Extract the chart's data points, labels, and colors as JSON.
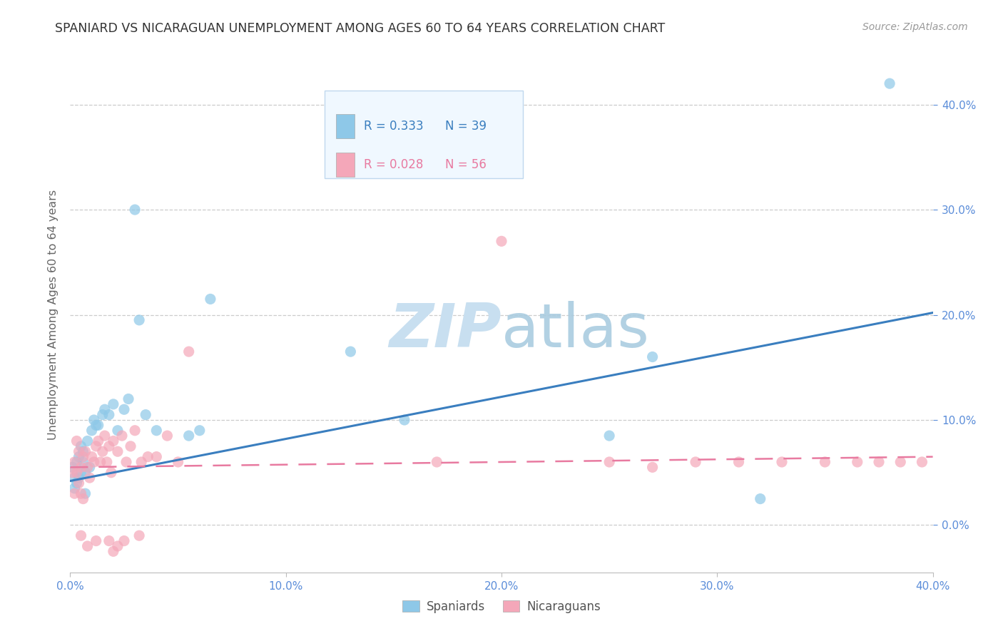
{
  "title": "SPANIARD VS NICARAGUAN UNEMPLOYMENT AMONG AGES 60 TO 64 YEARS CORRELATION CHART",
  "source": "Source: ZipAtlas.com",
  "ylabel": "Unemployment Among Ages 60 to 64 years",
  "xlim": [
    0.0,
    0.4
  ],
  "ylim": [
    -0.045,
    0.445
  ],
  "legend_blue_R": "R = 0.333",
  "legend_blue_N": "N = 39",
  "legend_pink_R": "R = 0.028",
  "legend_pink_N": "N = 56",
  "legend_spaniards": "Spaniards",
  "legend_nicaraguans": "Nicaraguans",
  "blue_color": "#8ec8e8",
  "pink_color": "#f4a7b9",
  "blue_line_color": "#3a7ebf",
  "pink_line_color": "#e87aa0",
  "grid_color": "#cccccc",
  "title_color": "#333333",
  "axis_label_color": "#666666",
  "tick_color": "#5b8dd9",
  "watermark_color": "#c8dff0",
  "blue_trendline_x": [
    0.0,
    0.4
  ],
  "blue_trendline_y": [
    0.042,
    0.202
  ],
  "pink_trendline_x": [
    0.0,
    0.4
  ],
  "pink_trendline_y": [
    0.055,
    0.065
  ],
  "spaniards_x": [
    0.001,
    0.002,
    0.002,
    0.003,
    0.003,
    0.004,
    0.004,
    0.005,
    0.005,
    0.006,
    0.006,
    0.007,
    0.007,
    0.008,
    0.009,
    0.01,
    0.011,
    0.012,
    0.013,
    0.015,
    0.016,
    0.018,
    0.02,
    0.022,
    0.025,
    0.027,
    0.03,
    0.032,
    0.035,
    0.04,
    0.055,
    0.06,
    0.065,
    0.13,
    0.155,
    0.25,
    0.27,
    0.32,
    0.38
  ],
  "spaniards_y": [
    0.055,
    0.045,
    0.035,
    0.06,
    0.04,
    0.065,
    0.045,
    0.075,
    0.05,
    0.06,
    0.07,
    0.05,
    0.03,
    0.08,
    0.055,
    0.09,
    0.1,
    0.095,
    0.095,
    0.105,
    0.11,
    0.105,
    0.115,
    0.09,
    0.11,
    0.12,
    0.3,
    0.195,
    0.105,
    0.09,
    0.085,
    0.09,
    0.215,
    0.165,
    0.1,
    0.085,
    0.16,
    0.025,
    0.42
  ],
  "nicaraguans_x": [
    0.001,
    0.002,
    0.002,
    0.003,
    0.003,
    0.004,
    0.004,
    0.005,
    0.005,
    0.006,
    0.006,
    0.007,
    0.008,
    0.009,
    0.01,
    0.011,
    0.012,
    0.013,
    0.014,
    0.015,
    0.016,
    0.017,
    0.018,
    0.019,
    0.02,
    0.022,
    0.024,
    0.026,
    0.028,
    0.03,
    0.033,
    0.036,
    0.04,
    0.045,
    0.05,
    0.055,
    0.17,
    0.2,
    0.25,
    0.27,
    0.29,
    0.31,
    0.33,
    0.35,
    0.365,
    0.375,
    0.385,
    0.395,
    0.005,
    0.008,
    0.012,
    0.02,
    0.025,
    0.032,
    0.018,
    0.022
  ],
  "nicaraguans_y": [
    0.05,
    0.06,
    0.03,
    0.08,
    0.05,
    0.07,
    0.04,
    0.055,
    0.03,
    0.065,
    0.025,
    0.07,
    0.055,
    0.045,
    0.065,
    0.06,
    0.075,
    0.08,
    0.06,
    0.07,
    0.085,
    0.06,
    0.075,
    0.05,
    0.08,
    0.07,
    0.085,
    0.06,
    0.075,
    0.09,
    0.06,
    0.065,
    0.065,
    0.085,
    0.06,
    0.165,
    0.06,
    0.27,
    0.06,
    0.055,
    0.06,
    0.06,
    0.06,
    0.06,
    0.06,
    0.06,
    0.06,
    0.06,
    -0.01,
    -0.02,
    -0.015,
    -0.025,
    -0.015,
    -0.01,
    -0.015,
    -0.02
  ]
}
